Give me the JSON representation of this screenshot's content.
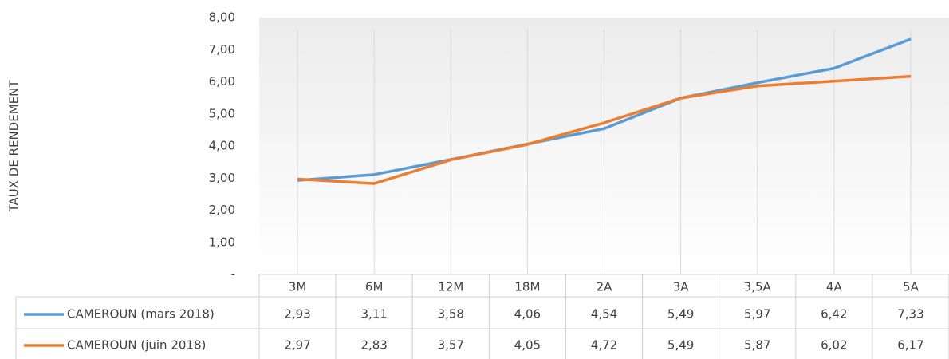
{
  "chart_data": {
    "type": "line",
    "y_label": "TAUX DE RENDEMENT",
    "categories": [
      "3M",
      "6M",
      "12M",
      "18M",
      "2A",
      "3A",
      "3,5A",
      "4A",
      "5A"
    ],
    "series": [
      {
        "name": "CAMEROUN (mars 2018)",
        "color": "#5b9bd5",
        "values": [
          2.93,
          3.11,
          3.58,
          4.06,
          4.54,
          5.49,
          5.97,
          6.42,
          7.33
        ],
        "value_labels": [
          "2,93",
          "3,11",
          "3,58",
          "4,06",
          "4,54",
          "5,49",
          "5,97",
          "6,42",
          "7,33"
        ]
      },
      {
        "name": "CAMEROUN (juin 2018)",
        "color": "#ed7d31",
        "values": [
          2.97,
          2.83,
          3.57,
          4.05,
          4.72,
          5.49,
          5.87,
          6.02,
          6.17
        ],
        "value_labels": [
          "2,97",
          "2,83",
          "3,57",
          "4,05",
          "4,72",
          "5,49",
          "5,87",
          "6,02",
          "6,17"
        ]
      }
    ],
    "ylim": [
      0,
      8
    ],
    "yticks": [
      {
        "value": 0,
        "label": "-"
      },
      {
        "value": 1,
        "label": "1,00"
      },
      {
        "value": 2,
        "label": "2,00"
      },
      {
        "value": 3,
        "label": "3,00"
      },
      {
        "value": 4,
        "label": "4,00"
      },
      {
        "value": 5,
        "label": "5,00"
      },
      {
        "value": 6,
        "label": "6,00"
      },
      {
        "value": 7,
        "label": "7,00"
      },
      {
        "value": 8,
        "label": "8,00"
      }
    ],
    "data_table": true
  }
}
